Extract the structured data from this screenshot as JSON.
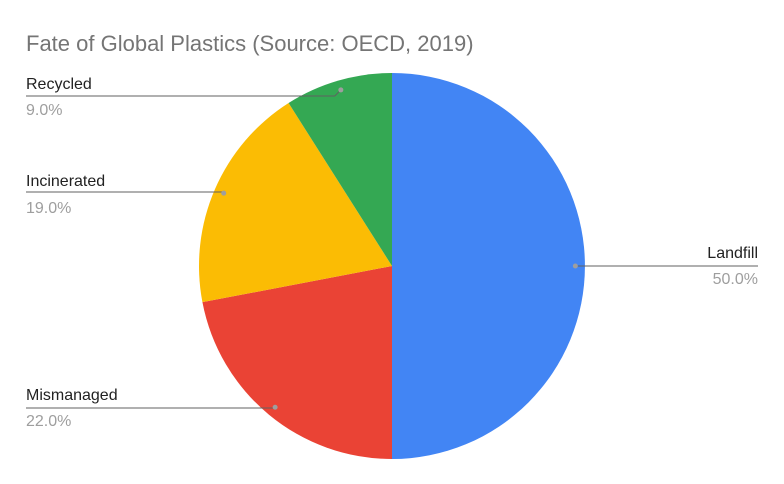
{
  "chart_data": {
    "type": "pie",
    "title": "Fate of Global Plastics (Source: OECD, 2019)",
    "slices": [
      {
        "label": "Landfill",
        "value": 50.0,
        "display": "50.0%",
        "color": "#4285F4"
      },
      {
        "label": "Mismanaged",
        "value": 22.0,
        "display": "22.0%",
        "color": "#EA4335"
      },
      {
        "label": "Incinerated",
        "value": 19.0,
        "display": "19.0%",
        "color": "#FBBC04"
      },
      {
        "label": "Recycled",
        "value": 9.0,
        "display": "9.0%",
        "color": "#34A853"
      }
    ],
    "legend": "none",
    "labels": "outside with leader lines"
  }
}
